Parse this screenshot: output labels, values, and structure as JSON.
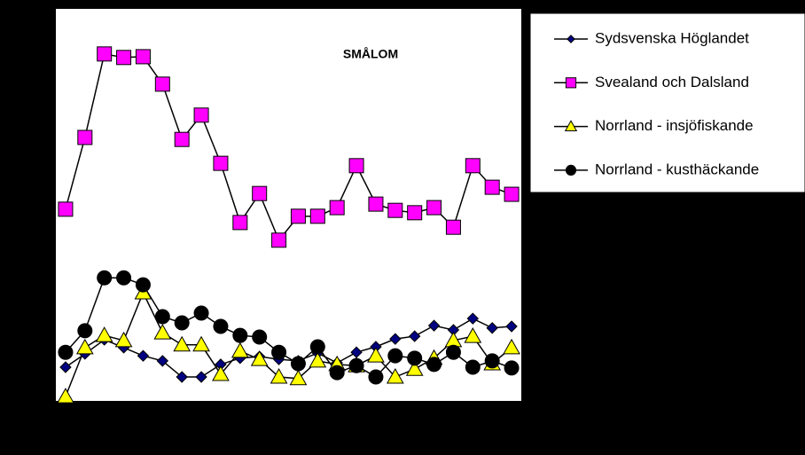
{
  "chart_data": {
    "type": "line",
    "title": "SMÅLOM",
    "categories": [
      null,
      null,
      null,
      null,
      null,
      null,
      null,
      null,
      null,
      null,
      null,
      null,
      null,
      null,
      null,
      null,
      null,
      null,
      null,
      null,
      null,
      null,
      null,
      null
    ],
    "ylim": [
      0,
      100
    ],
    "legend": "right",
    "series": [
      {
        "name": "Sydsvenska Höglandet",
        "color": "#000080",
        "marker": "diamond",
        "values": [
          8.6,
          12.0,
          15.6,
          13.6,
          11.5,
          10.2,
          6.1,
          6.1,
          9.3,
          10.9,
          11.3,
          10.6,
          10.2,
          12.2,
          9.7,
          12.4,
          13.8,
          15.8,
          16.5,
          19.2,
          18.1,
          21.0,
          18.6,
          19.0
        ]
      },
      {
        "name": "Svealand och Dalsland",
        "color": "#ff00ff",
        "marker": "square",
        "values": [
          48.9,
          67.2,
          88.5,
          87.6,
          87.8,
          80.8,
          66.7,
          72.9,
          60.6,
          45.5,
          52.9,
          41.0,
          47.1,
          47.1,
          49.3,
          60.0,
          50.2,
          48.6,
          48.0,
          49.3,
          44.3,
          60.0,
          54.5,
          52.7
        ]
      },
      {
        "name": "Norrland - insjöfiskande",
        "color": "#ffff00",
        "marker": "triangle",
        "values": [
          1.1,
          13.6,
          16.7,
          15.4,
          27.6,
          17.4,
          14.3,
          14.3,
          6.8,
          12.7,
          10.6,
          6.1,
          5.7,
          10.2,
          9.3,
          9.0,
          11.5,
          6.1,
          8.1,
          10.9,
          15.4,
          16.5,
          9.5,
          13.6
        ]
      },
      {
        "name": "Norrland - kusthäckande",
        "color": "#000000",
        "marker": "circle",
        "values": [
          12.4,
          17.9,
          31.4,
          31.4,
          29.6,
          21.5,
          19.9,
          22.4,
          19.0,
          16.7,
          16.3,
          12.4,
          9.5,
          13.8,
          7.2,
          9.0,
          6.1,
          11.5,
          10.9,
          9.3,
          12.4,
          8.6,
          10.2,
          8.4
        ]
      }
    ]
  }
}
